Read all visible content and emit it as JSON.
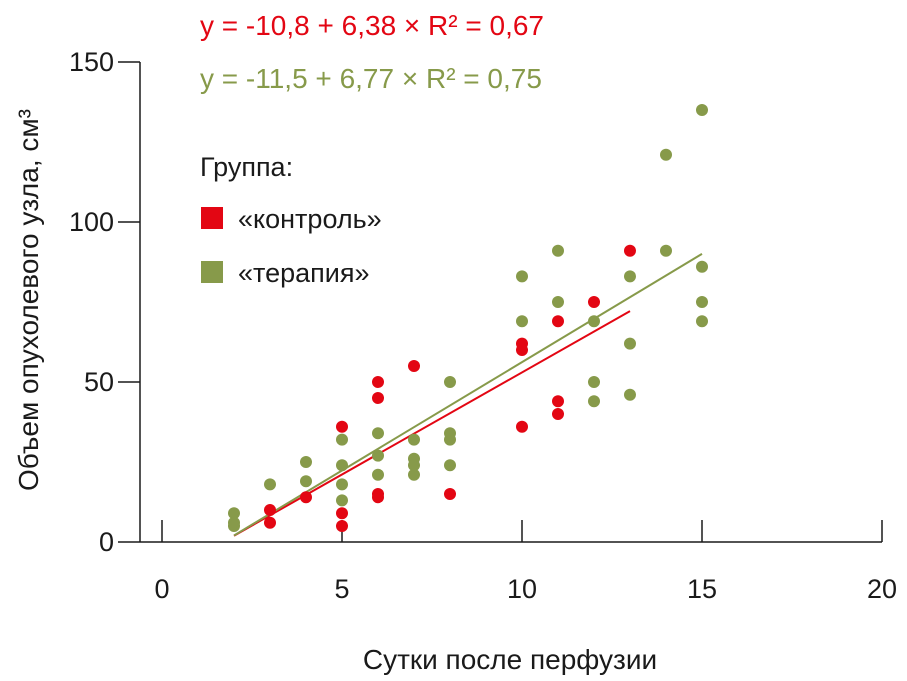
{
  "chart_data": {
    "type": "scatter",
    "xlabel": "Сутки после перфузии",
    "ylabel": "Объем опухолевого узла, см³",
    "xlim": [
      0,
      20
    ],
    "ylim": [
      0,
      150
    ],
    "x_ticks": [
      0,
      5,
      10,
      15,
      20
    ],
    "y_ticks": [
      0,
      50,
      100,
      150
    ],
    "grid": false,
    "legend_title": "Группа:",
    "legend_placement": "top-left",
    "series": [
      {
        "name": "«контроль»",
        "color": "#e30613",
        "points": [
          [
            3,
            10
          ],
          [
            3,
            6
          ],
          [
            4,
            14
          ],
          [
            5,
            36
          ],
          [
            5,
            9
          ],
          [
            5,
            5
          ],
          [
            6,
            50
          ],
          [
            6,
            45
          ],
          [
            6,
            15
          ],
          [
            6,
            14
          ],
          [
            7,
            55
          ],
          [
            8,
            15
          ],
          [
            10,
            62
          ],
          [
            10,
            60
          ],
          [
            10,
            36
          ],
          [
            11,
            69
          ],
          [
            11,
            44
          ],
          [
            11,
            40
          ],
          [
            12,
            75
          ],
          [
            13,
            91
          ]
        ],
        "regression": {
          "equation": "y = -10,8 + 6,38 × R² = 0,67",
          "intercept": -10.8,
          "slope": 6.38,
          "x_range": [
            2,
            13
          ]
        }
      },
      {
        "name": "«терапия»",
        "color": "#879a4a",
        "points": [
          [
            2,
            9
          ],
          [
            2,
            6
          ],
          [
            2,
            5
          ],
          [
            3,
            18
          ],
          [
            4,
            25
          ],
          [
            4,
            19
          ],
          [
            5,
            32
          ],
          [
            5,
            24
          ],
          [
            5,
            18
          ],
          [
            5,
            13
          ],
          [
            6,
            34
          ],
          [
            6,
            27
          ],
          [
            6,
            21
          ],
          [
            7,
            32
          ],
          [
            7,
            26
          ],
          [
            7,
            24
          ],
          [
            7,
            21
          ],
          [
            8,
            50
          ],
          [
            8,
            34
          ],
          [
            8,
            32
          ],
          [
            8,
            24
          ],
          [
            10,
            83
          ],
          [
            10,
            69
          ],
          [
            11,
            91
          ],
          [
            11,
            75
          ],
          [
            12,
            69
          ],
          [
            12,
            50
          ],
          [
            12,
            44
          ],
          [
            13,
            83
          ],
          [
            13,
            62
          ],
          [
            13,
            46
          ],
          [
            14,
            121
          ],
          [
            14,
            91
          ],
          [
            15,
            135
          ],
          [
            15,
            86
          ],
          [
            15,
            75
          ],
          [
            15,
            69
          ]
        ],
        "regression": {
          "equation": "y = -11,5 + 6,77 × R² = 0,75",
          "intercept": -11.5,
          "slope": 6.77,
          "x_range": [
            2,
            15
          ]
        }
      }
    ]
  }
}
